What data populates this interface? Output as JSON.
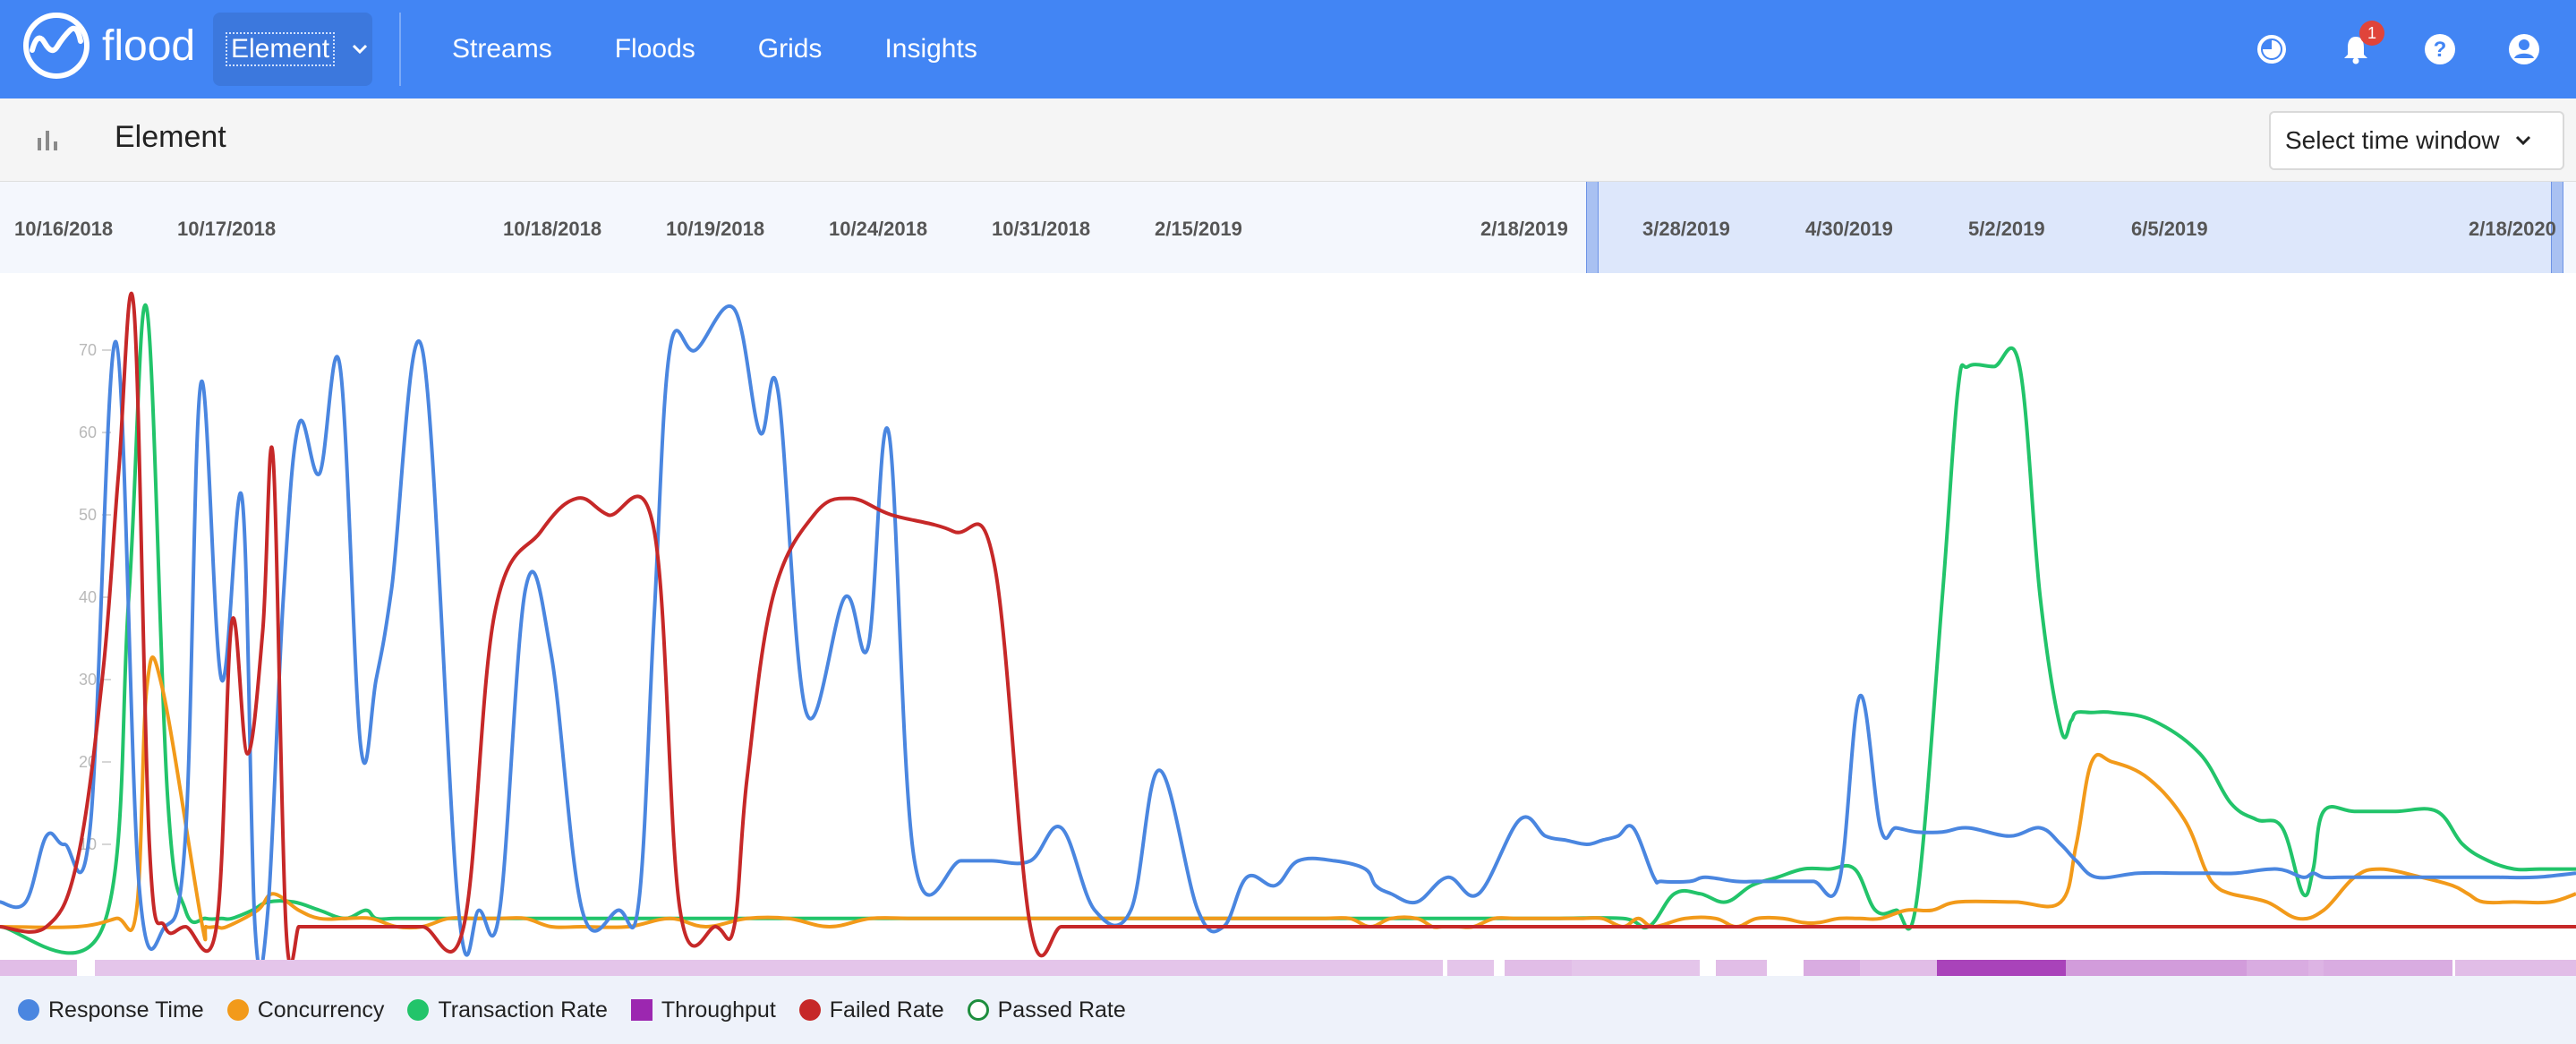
{
  "app": {
    "brand": "flood",
    "project_select": "Element",
    "nav": [
      "Streams",
      "Floods",
      "Grids",
      "Insights"
    ],
    "notification_count": "1",
    "icons": [
      "timer-icon",
      "bell-icon",
      "help-icon",
      "account-icon"
    ]
  },
  "subheader": {
    "title": "Element",
    "time_window_placeholder": "Select time window"
  },
  "timeline": {
    "dates": [
      "10/16/2018",
      "10/17/2018",
      "10/18/2018",
      "10/19/2018",
      "10/24/2018",
      "10/31/2018",
      "2/15/2019",
      "2/18/2019",
      "3/28/2019",
      "4/30/2019",
      "5/2/2019",
      "6/5/2019",
      "2/18/2020"
    ]
  },
  "legend": [
    {
      "name": "Response Time",
      "color": "#4a86e0",
      "shape": "circle-filled"
    },
    {
      "name": "Concurrency",
      "color": "#f29a1a",
      "shape": "circle-filled"
    },
    {
      "name": "Transaction Rate",
      "color": "#22c46a",
      "shape": "circle-filled"
    },
    {
      "name": "Throughput",
      "color": "#9c27b0",
      "shape": "square-filled"
    },
    {
      "name": "Failed Rate",
      "color": "#c62828",
      "shape": "circle-filled"
    },
    {
      "name": "Passed Rate",
      "color": "#1e8e3e",
      "shape": "circle-outline"
    }
  ],
  "chart_data": {
    "type": "line",
    "yticks": [
      10,
      20,
      30,
      40,
      50,
      60,
      70
    ],
    "ylim": [
      0,
      78
    ],
    "xlim": [
      0,
      100
    ],
    "grid": false,
    "series": [
      {
        "name": "Response Time",
        "color": "#4a86e0",
        "x": [
          0,
          1,
          1.8,
          2.5,
          3.5,
          4.5,
          5.4,
          6.4,
          7.2,
          7.8,
          8.6,
          9.4,
          9.9,
          10.4,
          11.0,
          11.6,
          12.4,
          13.2,
          14.0,
          14.6,
          15.2,
          16.4,
          17.8,
          18.6,
          19.4,
          20.4,
          21.4,
          22.6,
          24.0,
          24.8,
          25.4,
          26.0,
          27.0,
          28.5,
          29.5,
          30.2,
          31.3,
          32.8,
          33.7,
          34.5,
          35.5,
          37.3,
          38.5,
          40.0,
          41.2,
          42.5,
          43.9,
          45.0,
          46.5,
          47.5,
          48.4,
          49.5,
          50.4,
          51.8,
          53.0,
          53.4,
          54.0,
          55.0,
          56.2,
          57.4,
          59.0,
          60.0,
          60.8,
          61.6,
          62.2,
          62.8,
          63.4,
          64.2,
          64.5,
          65.6,
          66.2,
          67.4,
          68.2,
          69.4,
          70.4,
          71.4,
          72.2,
          73.0,
          73.6,
          74.4,
          75.4,
          76.4,
          78.0,
          79.2,
          80.0,
          80.6,
          81.4,
          83.0,
          84.6,
          85.8,
          86.8,
          88.4,
          89.4,
          89.8,
          90.2,
          91.0,
          92.4,
          94.0,
          94.8,
          95.8,
          97.0,
          98.4,
          100
        ],
        "y": [
          3,
          3,
          11,
          10,
          12,
          71,
          5,
          0,
          11,
          66,
          30,
          52,
          0,
          2,
          40,
          61,
          55,
          68,
          22,
          30,
          41,
          70,
          2,
          2,
          2,
          41,
          33,
          2,
          2,
          3,
          38,
          70,
          70,
          75,
          60,
          65,
          26,
          40,
          34,
          60,
          8,
          8,
          8,
          8,
          12,
          2,
          2,
          19,
          2,
          0,
          6,
          5,
          8,
          8,
          7,
          5,
          4,
          3,
          6,
          4,
          13,
          11,
          10.5,
          10,
          10.5,
          11,
          12,
          6,
          5.5,
          5.5,
          6,
          5.5,
          5.5,
          5.5,
          5.5,
          5.5,
          28,
          12,
          12,
          11.5,
          11.5,
          12,
          11,
          12,
          10,
          8,
          6,
          6.5,
          6.5,
          6.5,
          6.5,
          7,
          6,
          6.5,
          6,
          6,
          6,
          6,
          6,
          6,
          6,
          6,
          6.5
        ]
      },
      {
        "name": "Concurrency",
        "color": "#f29a1a",
        "x": [
          0,
          3,
          4.5,
          5.3,
          5.7,
          6.3,
          7.8,
          8.0,
          8.4,
          8.8,
          10.0,
          10.6,
          11.6,
          12.4,
          13.4,
          14.4,
          15.4,
          16.4,
          17.4,
          18.4,
          19.4,
          20.4,
          21.4,
          22.6,
          24.4,
          26.0,
          27.4,
          29.0,
          30.6,
          32.2,
          33.8,
          35.4,
          37.0,
          38.6,
          40.2,
          41.6,
          43.0,
          44.4,
          45.6,
          46.8,
          48.0,
          49.0,
          49.6,
          50.4,
          51.4,
          52.4,
          53.2,
          54.0,
          55.0,
          55.6,
          56.0,
          56.6,
          57.2,
          58.0,
          58.8,
          59.6,
          60.0,
          60.6,
          61.4,
          62.2,
          63.0,
          63.6,
          64.2,
          65.4,
          66.6,
          67.4,
          68.2,
          69.2,
          70.0,
          70.6,
          71.4,
          72.2,
          73.0,
          74.0,
          75.0,
          76.0,
          78.2,
          80.0,
          80.6,
          81.2,
          82.0,
          83.4,
          84.8,
          85.6,
          86.0,
          86.6,
          88.0,
          89.2,
          90.2,
          91.4,
          92.4,
          94.0,
          95.2,
          95.8,
          96.4,
          97.6,
          99.0,
          100
        ],
        "y": [
          0,
          0,
          1,
          2,
          29,
          29,
          1,
          0,
          0,
          0,
          2,
          4,
          2,
          1,
          1,
          1,
          0,
          0,
          1,
          1,
          1,
          1,
          0,
          0,
          0,
          1,
          0,
          1,
          1,
          0,
          1,
          1,
          1,
          1,
          1,
          1,
          1,
          1,
          1,
          1,
          1,
          1,
          1,
          1,
          1,
          1,
          0,
          1,
          1,
          0,
          0,
          0,
          0,
          1,
          1,
          1,
          1,
          1,
          1,
          1,
          0,
          1,
          0,
          1,
          1,
          0,
          1,
          1,
          0.5,
          0.5,
          1,
          1,
          1,
          2,
          2,
          3,
          3,
          3,
          10,
          20,
          20,
          18,
          13,
          7,
          5,
          4,
          3,
          1,
          2,
          6,
          7,
          6,
          5,
          4,
          3,
          3,
          3,
          4
        ]
      },
      {
        "name": "Transaction Rate",
        "color": "#22c46a",
        "x": [
          0,
          4,
          5,
          5.7,
          6.5,
          7.2,
          8.0,
          8.6,
          9.0,
          9.8,
          10.4,
          11.4,
          12.4,
          13.4,
          14.2,
          14.6,
          15.4,
          17.0,
          20.0,
          25.0,
          30.0,
          35.0,
          40.0,
          45.0,
          50.0,
          54.0,
          56.0,
          60.0,
          63.0,
          64.0,
          65.0,
          66.0,
          67.0,
          68.0,
          69.0,
          70.0,
          71.0,
          72.0,
          72.8,
          73.6,
          74.4,
          75.4,
          76.0,
          76.4,
          77.4,
          78.4,
          79.2,
          80.0,
          80.4,
          80.6,
          81.2,
          82.0,
          83.6,
          85.4,
          86.6,
          87.6,
          88.6,
          89.4,
          89.8,
          90.2,
          91.4,
          93.0,
          94.6,
          95.6,
          96.6,
          97.6,
          98.6,
          100
        ],
        "y": [
          0,
          0,
          40,
          75,
          16,
          2,
          1,
          1,
          1,
          2,
          3,
          3,
          2,
          1,
          2,
          1,
          1,
          1,
          1,
          1,
          1,
          1,
          1,
          1,
          1,
          1,
          1,
          1,
          1,
          0,
          4,
          4,
          3,
          5,
          6,
          7,
          7,
          7,
          2,
          2,
          3,
          40,
          65,
          68,
          68,
          68,
          40,
          24,
          25,
          26,
          26,
          26,
          25,
          21,
          15,
          13,
          12,
          4,
          7,
          14,
          14,
          14,
          14,
          10,
          8,
          7,
          7,
          7
        ]
      },
      {
        "name": "Failed Rate",
        "color": "#c62828",
        "x": [
          0,
          1.8,
          3.0,
          4.0,
          4.6,
          5.2,
          5.8,
          6.4,
          7.2,
          8.4,
          9.0,
          9.6,
          10.2,
          10.6,
          11.1,
          11.6,
          11.8,
          12.4,
          13.4,
          14.0,
          15.0,
          16.4,
          18.0,
          19.2,
          21.0,
          22.4,
          23.6,
          25.4,
          26.4,
          27.8,
          28.5,
          29.0,
          30.0,
          31.6,
          33.0,
          34.6,
          37.0,
          38.6,
          40.0,
          41.2,
          42.2,
          43.4,
          44.6,
          45.6,
          46.2,
          46.6,
          46.8,
          47.6,
          49.2,
          50.4,
          51.6,
          53.0,
          53.4,
          53.6,
          54.6,
          56.6,
          58.0,
          60.0,
          70.0,
          80.0,
          90.0,
          100
        ],
        "y": [
          0,
          0,
          8,
          31,
          55,
          75,
          10,
          0,
          0,
          0,
          37,
          21,
          36,
          57,
          0,
          0,
          0,
          0,
          0,
          0,
          0,
          0,
          0,
          38,
          48,
          52,
          50,
          48,
          2,
          0,
          0,
          18,
          40,
          50,
          52,
          50,
          48,
          44,
          0,
          0,
          0,
          0,
          0,
          0,
          0,
          0,
          0,
          0,
          0,
          0,
          0,
          0,
          0,
          0,
          0,
          0,
          0,
          0,
          0,
          0,
          0,
          0
        ]
      }
    ],
    "throughput_strip": [
      {
        "start": 0,
        "end": 3,
        "level": 0.25
      },
      {
        "start": 3.7,
        "end": 5.7,
        "level": 0.2
      },
      {
        "start": 5.7,
        "end": 56,
        "level": 0.2
      },
      {
        "start": 56.2,
        "end": 58,
        "level": 0.2
      },
      {
        "start": 58.4,
        "end": 61,
        "level": 0.25
      },
      {
        "start": 61,
        "end": 66,
        "level": 0.2
      },
      {
        "start": 66.6,
        "end": 68.6,
        "level": 0.25
      },
      {
        "start": 70,
        "end": 72.2,
        "level": 0.35
      },
      {
        "start": 72.2,
        "end": 75.2,
        "level": 0.25
      },
      {
        "start": 75.2,
        "end": 80.2,
        "level": 1.0
      },
      {
        "start": 80.2,
        "end": 87.2,
        "level": 0.45
      },
      {
        "start": 87.2,
        "end": 89.6,
        "level": 0.35
      },
      {
        "start": 89.6,
        "end": 90.2,
        "level": 0.3
      },
      {
        "start": 90.2,
        "end": 95.2,
        "level": 0.35
      },
      {
        "start": 95.3,
        "end": 100,
        "level": 0.25
      }
    ]
  }
}
